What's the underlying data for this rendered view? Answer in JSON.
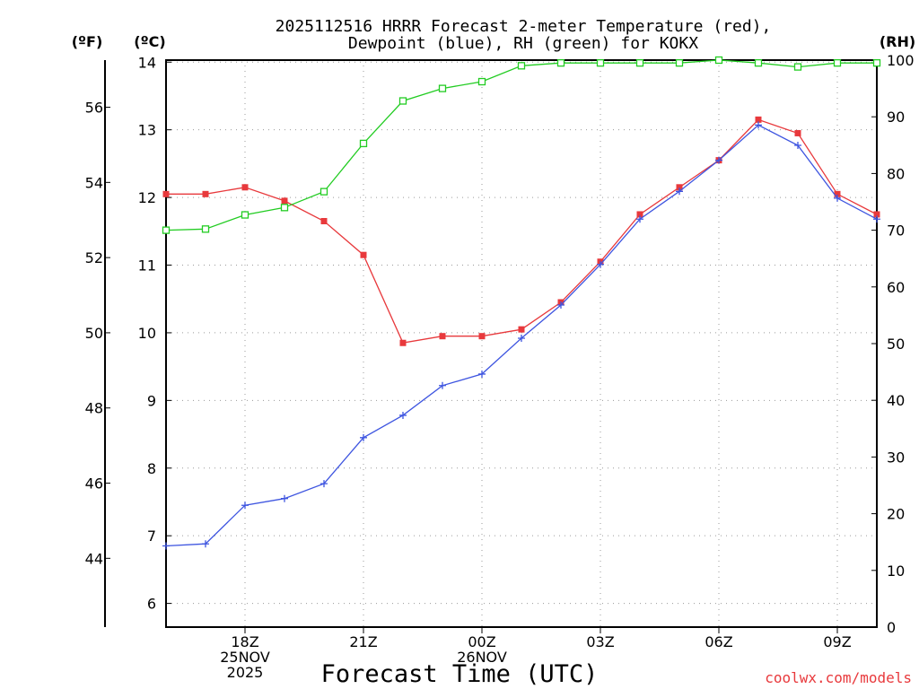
{
  "chart_data": {
    "type": "line",
    "title": [
      "2025112516 HRRR Forecast 2-meter Temperature (red),",
      "Dewpoint (blue), RH (green) for KOKX"
    ],
    "xlabel": "Forecast Time (UTC)",
    "credit": "coolwx.com/models",
    "units": {
      "fahrenheit": "(ºF)",
      "celsius": "(ºC)",
      "rh": "(RH)"
    },
    "x_hours": [
      16,
      17,
      18,
      19,
      20,
      21,
      22,
      23,
      24,
      25,
      26,
      27,
      28,
      29,
      30,
      31,
      32,
      33,
      34
    ],
    "xlim": [
      16,
      34
    ],
    "x_ticks": [
      {
        "hour": 18,
        "lines": [
          "18Z",
          "25NOV",
          "2025"
        ]
      },
      {
        "hour": 21,
        "lines": [
          "21Z"
        ]
      },
      {
        "hour": 24,
        "lines": [
          "00Z",
          "26NOV"
        ]
      },
      {
        "hour": 27,
        "lines": [
          "03Z"
        ]
      },
      {
        "hour": 30,
        "lines": [
          "06Z"
        ]
      },
      {
        "hour": 33,
        "lines": [
          "09Z"
        ]
      }
    ],
    "celsius_axis": {
      "min": 5.65,
      "max": 14.03,
      "ticks": [
        "6",
        "7",
        "8",
        "9",
        "10",
        "11",
        "12",
        "13",
        "14"
      ]
    },
    "fahrenheit_ticks": [
      "44",
      "46",
      "48",
      "50",
      "52",
      "54",
      "56"
    ],
    "rh_axis": {
      "min": 0,
      "max": 100,
      "ticks": [
        "0",
        "10",
        "20",
        "30",
        "40",
        "50",
        "60",
        "70",
        "80",
        "90",
        "100"
      ]
    },
    "series": [
      {
        "name": "Temperature",
        "unit": "C",
        "color": "#e8393c",
        "marker": "filled-square",
        "values": [
          12.05,
          12.05,
          12.15,
          11.95,
          11.65,
          11.15,
          9.85,
          9.95,
          9.95,
          10.05,
          10.45,
          11.05,
          11.75,
          12.15,
          12.55,
          13.15,
          12.95,
          12.05,
          11.75
        ]
      },
      {
        "name": "Dewpoint",
        "unit": "C",
        "color": "#3e55e0",
        "marker": "plus",
        "values": [
          6.85,
          6.88,
          7.45,
          7.55,
          7.77,
          8.45,
          8.78,
          9.22,
          9.39,
          9.92,
          10.41,
          11.01,
          11.68,
          12.09,
          12.55,
          13.07,
          12.77,
          11.99,
          11.68
        ]
      },
      {
        "name": "RH",
        "unit": "%",
        "color": "#22cc22",
        "marker": "open-square",
        "values": [
          70,
          70.2,
          72.7,
          74,
          76.8,
          85.3,
          92.8,
          95,
          96.2,
          99,
          99.5,
          99.5,
          99.5,
          99.5,
          100,
          99.5,
          98.8,
          99.5,
          99.5
        ]
      }
    ]
  }
}
